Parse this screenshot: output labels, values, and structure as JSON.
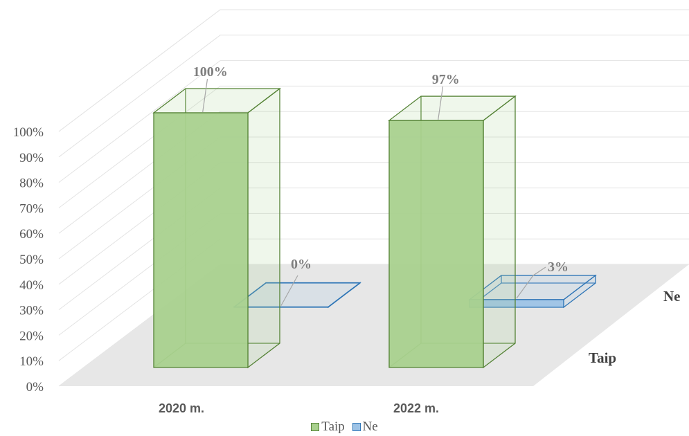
{
  "chart_data": {
    "type": "bar",
    "categories": [
      "2020 m.",
      "2022 m."
    ],
    "series": [
      {
        "name": "Taip",
        "values": [
          100,
          97
        ],
        "labels": [
          "100%",
          "97%"
        ],
        "color": "#a9d18e",
        "stroke": "#548235"
      },
      {
        "name": "Ne",
        "values": [
          0,
          3
        ],
        "labels": [
          "0%",
          "3%"
        ],
        "color": "#9dc3e6",
        "stroke": "#2e75b6"
      }
    ],
    "yticks": [
      "0%",
      "10%",
      "20%",
      "30%",
      "40%",
      "50%",
      "60%",
      "70%",
      "80%",
      "90%",
      "100%"
    ],
    "ylim": [
      0,
      100
    ],
    "depth_labels": [
      "Taip",
      "Ne"
    ],
    "grid": true,
    "legend": "bottom"
  }
}
